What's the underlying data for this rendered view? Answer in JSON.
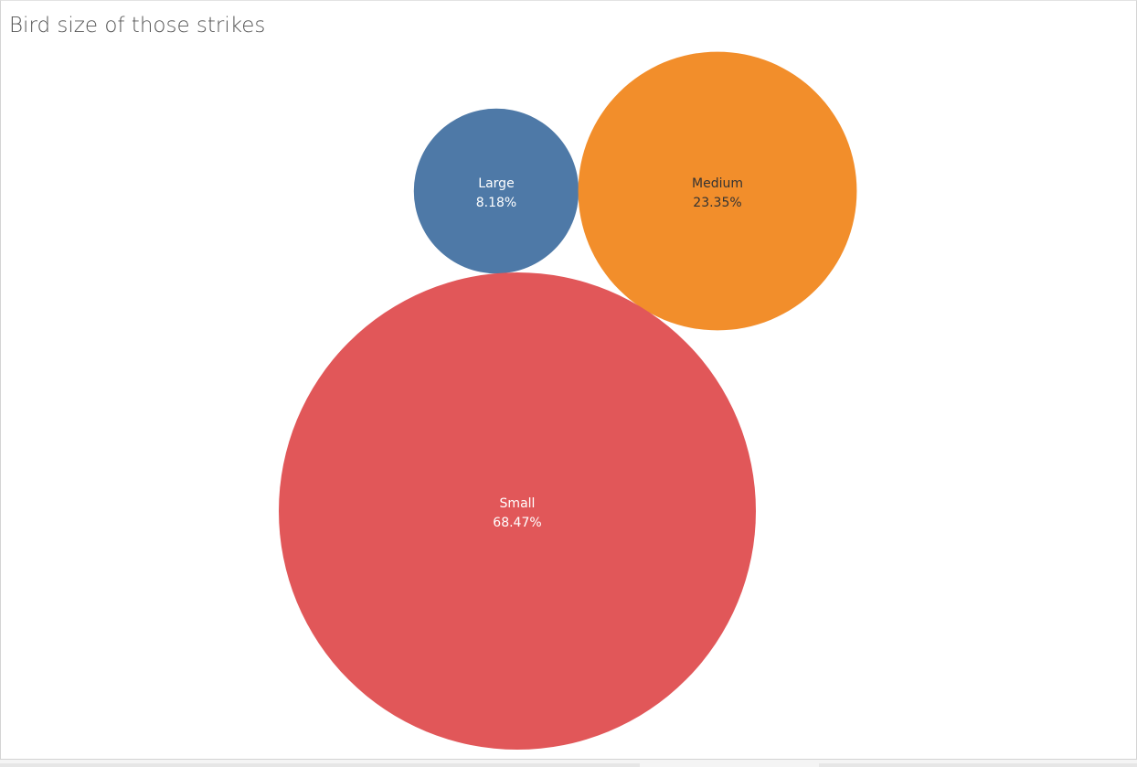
{
  "chart_data": {
    "type": "bubble",
    "title": "Bird size of those strikes",
    "bubbles": [
      {
        "category": "Large",
        "value_label": "8.18%",
        "value": 8.18,
        "color": "#4e79a7",
        "text_color": "#ffffff"
      },
      {
        "category": "Medium",
        "value_label": "23.35%",
        "value": 23.35,
        "color": "#f28e2b",
        "text_color": "#333333"
      },
      {
        "category": "Small",
        "value_label": "68.47%",
        "value": 68.47,
        "color": "#e15759",
        "text_color": "#ffffff"
      }
    ]
  }
}
